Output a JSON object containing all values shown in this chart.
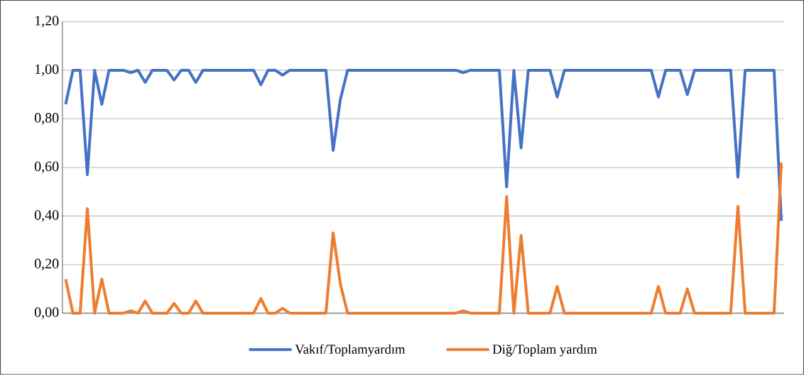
{
  "chart_data": {
    "type": "line",
    "categories": [
      null,
      null,
      null,
      null,
      null,
      null,
      null,
      null,
      null,
      null,
      null,
      null,
      null,
      null,
      null,
      null,
      null,
      null,
      null,
      null,
      null,
      null,
      null,
      null,
      null,
      null,
      null,
      null,
      null,
      null,
      null,
      null,
      null,
      null,
      null,
      null,
      null,
      null,
      null,
      null,
      null,
      null,
      null,
      null,
      null,
      null,
      null,
      null,
      null,
      null,
      null,
      null,
      null,
      null,
      null,
      null,
      null,
      null,
      null,
      null,
      null,
      null,
      null,
      null,
      null,
      null,
      null,
      null,
      null,
      null,
      null,
      null,
      null,
      null,
      null,
      null,
      null,
      null,
      null,
      null,
      null,
      null,
      null,
      null,
      null,
      null,
      null,
      null,
      null,
      null,
      null,
      null,
      null,
      null,
      null,
      null,
      null,
      null,
      null,
      null
    ],
    "series": [
      {
        "name": "Vakıf/Toplamyardım",
        "color": "#4472c4",
        "values": [
          0.86,
          1,
          1,
          0.57,
          1,
          0.86,
          1,
          1,
          1,
          0.99,
          1,
          0.95,
          1,
          1,
          1,
          0.96,
          1,
          1,
          0.95,
          1,
          1,
          1,
          1,
          1,
          1,
          1,
          1,
          0.94,
          1,
          1,
          0.98,
          1,
          1,
          1,
          1,
          1,
          1,
          0.67,
          0.88,
          1,
          1,
          1,
          1,
          1,
          1,
          1,
          1,
          1,
          1,
          1,
          1,
          1,
          1,
          1,
          1,
          0.99,
          1,
          1,
          1,
          1,
          1,
          0.52,
          1,
          0.68,
          1,
          1,
          1,
          1,
          0.89,
          1,
          1,
          1,
          1,
          1,
          1,
          1,
          1,
          1,
          1,
          1,
          1,
          1,
          0.89,
          1,
          1,
          1,
          0.9,
          1,
          1,
          1,
          1,
          1,
          1,
          0.56,
          1,
          1,
          1,
          1,
          1,
          0.38
        ]
      },
      {
        "name": "Diğ/Toplam yardım",
        "color": "#ed7d31",
        "values": [
          0.14,
          0,
          0,
          0.43,
          0,
          0.14,
          0,
          0,
          0,
          0.01,
          0,
          0.05,
          0,
          0,
          0,
          0.04,
          0,
          0,
          0.05,
          0,
          0,
          0,
          0,
          0,
          0,
          0,
          0,
          0.06,
          0,
          0,
          0.02,
          0,
          0,
          0,
          0,
          0,
          0,
          0.33,
          0.12,
          0,
          0,
          0,
          0,
          0,
          0,
          0,
          0,
          0,
          0,
          0,
          0,
          0,
          0,
          0,
          0,
          0.01,
          0,
          0,
          0,
          0,
          0,
          0.48,
          0,
          0.32,
          0,
          0,
          0,
          0,
          0.11,
          0,
          0,
          0,
          0,
          0,
          0,
          0,
          0,
          0,
          0,
          0,
          0,
          0,
          0.11,
          0,
          0,
          0,
          0.1,
          0,
          0,
          0,
          0,
          0,
          0,
          0.44,
          0,
          0,
          0,
          0,
          0,
          0.62
        ]
      }
    ],
    "ylim": [
      0,
      1.2
    ],
    "yticks": [
      {
        "value": 0,
        "label": "0,00"
      },
      {
        "value": 0.2,
        "label": "0,20"
      },
      {
        "value": 0.4,
        "label": "0,40"
      },
      {
        "value": 0.6,
        "label": "0,60"
      },
      {
        "value": 0.8,
        "label": "0,80"
      },
      {
        "value": 1.0,
        "label": "1,00"
      },
      {
        "value": 1.2,
        "label": "1,20"
      }
    ],
    "grid": "y",
    "legend": "bottom",
    "line_style": "solid",
    "tick_labels": "y"
  }
}
